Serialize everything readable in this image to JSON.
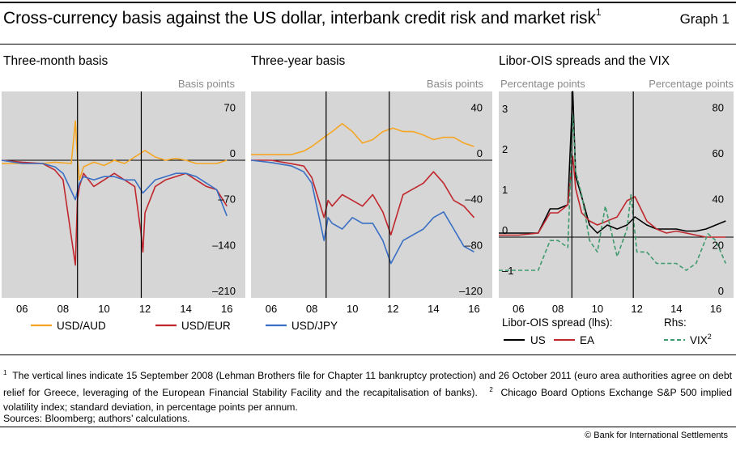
{
  "header": {
    "title": "Cross-currency basis against the US dollar, interbank credit risk and market risk",
    "title_sup": "1",
    "graph_label": "Graph 1"
  },
  "panels": [
    {
      "title": "Three-month basis",
      "unit": "Basis points",
      "x_ticks": [
        "06",
        "08",
        "10",
        "12",
        "14",
        "16"
      ],
      "y_ticks_right": [
        "70",
        "0",
        "–70",
        "–140",
        "–210"
      ],
      "legend": [
        "USD/AUD",
        "USD/EUR"
      ]
    },
    {
      "title": "Three-year basis",
      "unit": "Basis points",
      "x_ticks": [
        "06",
        "08",
        "10",
        "12",
        "14",
        "16"
      ],
      "y_ticks_right": [
        "40",
        "0",
        "–40",
        "–80",
        "–120"
      ],
      "legend": [
        "USD/JPY"
      ]
    },
    {
      "title": "Libor-OIS spreads and the VIX",
      "unit_left": "Percentage points",
      "unit_right": "Percentage points",
      "x_ticks": [
        "06",
        "08",
        "10",
        "12",
        "14",
        "16"
      ],
      "y_ticks_left": [
        "3",
        "2",
        "1",
        "0",
        "–1"
      ],
      "y_ticks_right": [
        "80",
        "60",
        "40",
        "20",
        "0"
      ],
      "legend_left_title": "Libor-OIS spread (lhs):",
      "legend_left": [
        "US",
        "EA"
      ],
      "legend_right_title": "Rhs:",
      "legend_right": [
        "VIX"
      ],
      "legend_right_sup": "2"
    }
  ],
  "chart_data": [
    {
      "type": "line",
      "title": "Three-month basis",
      "ylabel": "Basis points",
      "xlim": [
        2005.0,
        2016.9
      ],
      "ylim": [
        -210,
        105
      ],
      "vlines": [
        "2008-09-15",
        "2011-10-26"
      ],
      "colors": {
        "USD/AUD": "#f5a623",
        "USD/EUR": "#c0272d",
        "USD/JPY": "#3a6fc4"
      },
      "series": [
        {
          "name": "USD/AUD",
          "x": [
            2005.0,
            2006.0,
            2007.0,
            2007.6,
            2008.4,
            2008.6,
            2008.7,
            2008.8,
            2009.0,
            2009.5,
            2010.0,
            2010.5,
            2011.0,
            2011.5,
            2012.0,
            2012.5,
            2013.0,
            2013.5,
            2014.0,
            2014.5,
            2015.0,
            2015.5,
            2016.0
          ],
          "y": [
            -5,
            -5,
            -5,
            -3,
            -5,
            60,
            5,
            -30,
            -10,
            -3,
            -8,
            0,
            -5,
            5,
            15,
            5,
            0,
            3,
            0,
            -5,
            -5,
            -5,
            0
          ]
        },
        {
          "name": "USD/EUR",
          "x": [
            2005.0,
            2006.0,
            2007.0,
            2007.6,
            2008.0,
            2008.6,
            2008.7,
            2008.8,
            2009.0,
            2009.5,
            2010.0,
            2010.5,
            2011.0,
            2011.5,
            2011.8,
            2011.9,
            2012.0,
            2012.5,
            2013.0,
            2013.5,
            2014.0,
            2014.5,
            2015.0,
            2015.5,
            2016.0
          ],
          "y": [
            0,
            -3,
            -5,
            -15,
            -30,
            -160,
            -60,
            -40,
            -20,
            -40,
            -30,
            -20,
            -30,
            -40,
            -110,
            -140,
            -80,
            -40,
            -30,
            -25,
            -20,
            -30,
            -40,
            -45,
            -70
          ]
        },
        {
          "name": "USD/JPY",
          "x": [
            2005.0,
            2006.0,
            2007.0,
            2007.6,
            2008.0,
            2008.6,
            2008.8,
            2009.0,
            2009.5,
            2010.0,
            2010.5,
            2011.0,
            2011.5,
            2011.9,
            2012.5,
            2013.0,
            2013.5,
            2014.0,
            2014.5,
            2015.0,
            2015.5,
            2016.0
          ],
          "y": [
            0,
            -5,
            -5,
            -10,
            -20,
            -60,
            -35,
            -25,
            -30,
            -25,
            -25,
            -30,
            -30,
            -50,
            -30,
            -25,
            -20,
            -20,
            -25,
            -35,
            -45,
            -85
          ]
        }
      ]
    },
    {
      "type": "line",
      "title": "Three-year basis",
      "ylabel": "Basis points",
      "xlim": [
        2005.0,
        2016.9
      ],
      "ylim": [
        -120,
        60
      ],
      "vlines": [
        "2008-09-15",
        "2011-10-26"
      ],
      "colors": {
        "USD/AUD": "#f5a623",
        "USD/EUR": "#c0272d",
        "USD/JPY": "#3a6fc4"
      },
      "series": [
        {
          "name": "USD/AUD",
          "x": [
            2005.0,
            2006.0,
            2007.0,
            2007.6,
            2008.0,
            2008.6,
            2009.0,
            2009.5,
            2010.0,
            2010.5,
            2011.0,
            2011.5,
            2012.0,
            2012.5,
            2013.0,
            2013.5,
            2014.0,
            2014.5,
            2015.0,
            2015.5,
            2016.0
          ],
          "y": [
            5,
            5,
            5,
            8,
            12,
            20,
            25,
            32,
            25,
            15,
            18,
            25,
            28,
            25,
            25,
            22,
            18,
            20,
            20,
            15,
            12
          ]
        },
        {
          "name": "USD/EUR",
          "x": [
            2005.0,
            2006.0,
            2007.0,
            2007.6,
            2008.0,
            2008.6,
            2008.8,
            2009.0,
            2009.5,
            2010.0,
            2010.5,
            2011.0,
            2011.5,
            2011.9,
            2012.5,
            2013.0,
            2013.5,
            2014.0,
            2014.5,
            2015.0,
            2015.5,
            2016.0
          ],
          "y": [
            0,
            0,
            -3,
            -5,
            -15,
            -50,
            -35,
            -40,
            -30,
            -35,
            -40,
            -30,
            -45,
            -65,
            -30,
            -25,
            -20,
            -10,
            -20,
            -35,
            -40,
            -50
          ]
        },
        {
          "name": "USD/JPY",
          "x": [
            2005.0,
            2006.0,
            2007.0,
            2007.6,
            2008.0,
            2008.6,
            2008.8,
            2009.0,
            2009.5,
            2010.0,
            2010.5,
            2011.0,
            2011.5,
            2011.9,
            2012.5,
            2013.0,
            2013.5,
            2014.0,
            2014.5,
            2015.0,
            2015.5,
            2016.0
          ],
          "y": [
            0,
            -2,
            -5,
            -10,
            -20,
            -70,
            -50,
            -55,
            -60,
            -50,
            -55,
            -55,
            -70,
            -90,
            -70,
            -65,
            -60,
            -50,
            -45,
            -60,
            -75,
            -80
          ]
        }
      ]
    },
    {
      "type": "line",
      "title": "Libor-OIS spreads and the VIX",
      "ylabel_left": "Percentage points",
      "ylabel_right": "Percentage points",
      "xlim": [
        2005.0,
        2016.9
      ],
      "ylim_left": [
        -1.5,
        3.6
      ],
      "ylim_right": [
        0,
        90
      ],
      "vlines": [
        "2008-09-15",
        "2011-10-26"
      ],
      "colors": {
        "US": "#000000",
        "EA": "#c0272d",
        "VIX": "#3f9a6e"
      },
      "series": [
        {
          "name": "US",
          "axis": "left",
          "x": [
            2005.0,
            2006.0,
            2007.0,
            2007.6,
            2008.0,
            2008.5,
            2008.75,
            2008.9,
            2009.2,
            2009.6,
            2010.0,
            2010.5,
            2011.0,
            2011.5,
            2011.9,
            2012.5,
            2013.0,
            2013.5,
            2014.0,
            2014.5,
            2015.0,
            2015.5,
            2016.0,
            2016.5
          ],
          "y": [
            0.1,
            0.1,
            0.1,
            0.7,
            0.7,
            0.8,
            3.6,
            1.5,
            1.0,
            0.3,
            0.1,
            0.3,
            0.2,
            0.3,
            0.5,
            0.3,
            0.2,
            0.2,
            0.2,
            0.15,
            0.15,
            0.2,
            0.3,
            0.4
          ]
        },
        {
          "name": "EA",
          "axis": "left",
          "x": [
            2005.0,
            2006.0,
            2007.0,
            2007.6,
            2008.0,
            2008.5,
            2008.75,
            2008.9,
            2009.2,
            2009.6,
            2010.0,
            2010.5,
            2011.0,
            2011.5,
            2011.9,
            2012.5,
            2013.0,
            2013.5,
            2014.0,
            2014.5,
            2015.0,
            2015.5,
            2016.0,
            2016.5
          ],
          "y": [
            0.05,
            0.05,
            0.1,
            0.6,
            0.6,
            0.8,
            2.0,
            1.2,
            0.6,
            0.4,
            0.3,
            0.4,
            0.5,
            0.9,
            1.0,
            0.4,
            0.2,
            0.1,
            0.15,
            0.1,
            0.05,
            0.0,
            0.0,
            0.0
          ]
        },
        {
          "name": "VIX",
          "axis": "right",
          "x": [
            2005.0,
            2006.0,
            2007.0,
            2007.6,
            2008.0,
            2008.5,
            2008.75,
            2008.9,
            2009.2,
            2009.6,
            2010.0,
            2010.4,
            2011.0,
            2011.5,
            2011.7,
            2012.0,
            2012.5,
            2013.0,
            2013.5,
            2014.0,
            2014.5,
            2015.0,
            2015.6,
            2016.0,
            2016.5
          ],
          "y": [
            12,
            12,
            12,
            25,
            25,
            22,
            80,
            55,
            45,
            25,
            20,
            40,
            18,
            30,
            45,
            20,
            20,
            15,
            15,
            15,
            12,
            15,
            28,
            25,
            15
          ]
        }
      ]
    }
  ],
  "footnotes": {
    "note1_marker": "1",
    "note1_text": "The vertical lines indicate 15 September 2008 (Lehman Brothers file for Chapter 11 bankruptcy protection) and 26 October 2011 (euro area authorities agree on debt relief for Greece, leveraging of the European Financial Stability Facility and the recapitalisation of banks).",
    "note2_marker": "2",
    "note2_text": "Chicago Board Options Exchange S&P 500 implied volatility index; standard deviation, in percentage points per annum.",
    "sources": "Sources: Bloomberg; authors’ calculations.",
    "copyright": "© Bank for International Settlements"
  }
}
